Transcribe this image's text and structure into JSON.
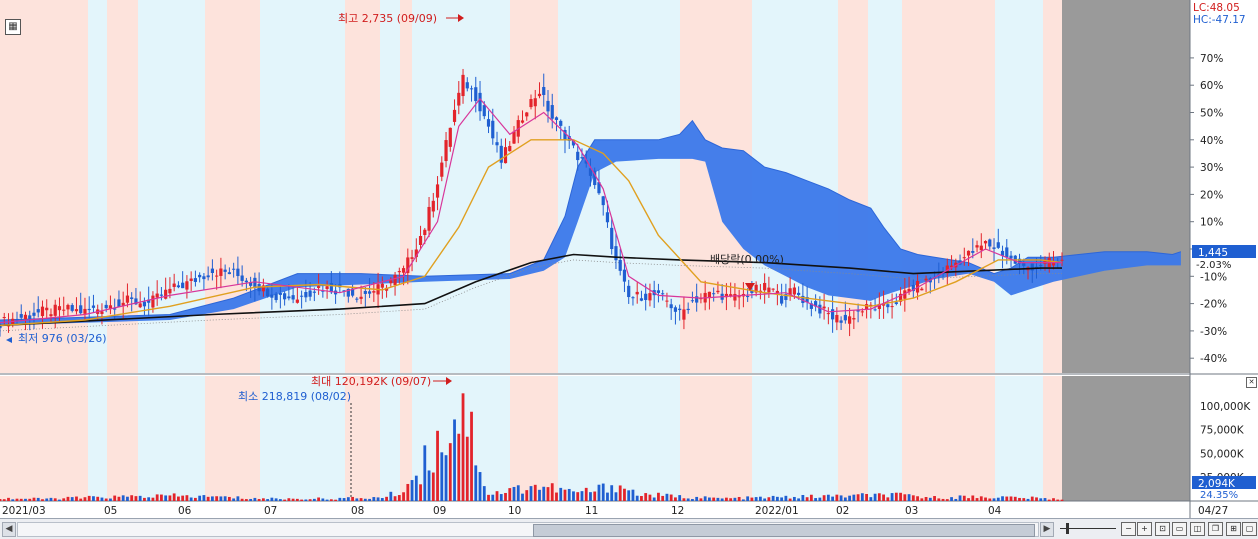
{
  "chart_data": {
    "type": "candlestick",
    "price_axis": {
      "ticks": [
        "70%",
        "60%",
        "50%",
        "40%",
        "30%",
        "20%",
        "10%",
        "0%",
        "-10%",
        "-20%",
        "-30%",
        "-40%"
      ],
      "lc_label": "LC:48.05",
      "hc_label": "HC:-47.17",
      "current_price": "1,445",
      "current_change": "-2.03%"
    },
    "volume_axis": {
      "ticks": [
        "100,000K",
        "75,000K",
        "50,000K",
        "25,000K"
      ],
      "current_volume": "2,094K",
      "current_pct": "24.35%"
    },
    "x_labels": [
      "2021/03",
      "05",
      "06",
      "07",
      "08",
      "09",
      "10",
      "11",
      "12",
      "2022/01",
      "02",
      "03",
      "04",
      "04/27"
    ],
    "annotations": {
      "high_label": "최고 2,735 (09/09)",
      "low_label": "최저 976 (03/26)",
      "dividend_label": "배당락(0.00%)",
      "volume_max_label": "최대 120,192K (09/07)",
      "volume_min_label": "최소 218,819 (08/02)"
    },
    "colors": {
      "up": "#e3242b",
      "down": "#1f5fd1",
      "cloud": "#3b78ea",
      "ma_short": "#d8369a",
      "ma_mid": "#e0a020",
      "ma_long": "#111111",
      "band_pink": "#fde3dc",
      "band_blue": "#e3f5fb",
      "future_area": "#9a9a9a"
    },
    "close_pct_path": [
      [
        0,
        -27
      ],
      [
        5,
        -25
      ],
      [
        10,
        -23
      ],
      [
        15,
        -22
      ],
      [
        20,
        -23
      ],
      [
        25,
        -21
      ],
      [
        30,
        -19
      ],
      [
        35,
        -20
      ],
      [
        40,
        -15
      ],
      [
        45,
        -12
      ],
      [
        50,
        -8
      ],
      [
        55,
        -9
      ],
      [
        60,
        -13
      ],
      [
        65,
        -17
      ],
      [
        70,
        -18
      ],
      [
        75,
        -14
      ],
      [
        80,
        -15
      ],
      [
        85,
        -17
      ],
      [
        90,
        -14
      ],
      [
        95,
        -8
      ],
      [
        100,
        8
      ],
      [
        103,
        25
      ],
      [
        106,
        45
      ],
      [
        109,
        62
      ],
      [
        112,
        56
      ],
      [
        115,
        45
      ],
      [
        118,
        32
      ],
      [
        121,
        42
      ],
      [
        124,
        52
      ],
      [
        127,
        58
      ],
      [
        130,
        48
      ],
      [
        133,
        42
      ],
      [
        136,
        34
      ],
      [
        139,
        28
      ],
      [
        142,
        15
      ],
      [
        145,
        -5
      ],
      [
        148,
        -18
      ],
      [
        151,
        -17
      ],
      [
        154,
        -17
      ],
      [
        157,
        -19
      ],
      [
        160,
        -24
      ],
      [
        163,
        -19
      ],
      [
        166,
        -17
      ],
      [
        169,
        -16
      ],
      [
        172,
        -18
      ],
      [
        175,
        -17
      ],
      [
        178,
        -15
      ],
      [
        181,
        -14
      ],
      [
        184,
        -18
      ],
      [
        187,
        -15
      ],
      [
        190,
        -20
      ],
      [
        193,
        -22
      ],
      [
        196,
        -25
      ],
      [
        199,
        -26
      ],
      [
        202,
        -23
      ],
      [
        205,
        -21
      ],
      [
        208,
        -22
      ],
      [
        211,
        -19
      ],
      [
        214,
        -15
      ],
      [
        217,
        -13
      ],
      [
        220,
        -11
      ],
      [
        223,
        -7
      ],
      [
        226,
        -4
      ],
      [
        229,
        -1
      ],
      [
        232,
        2
      ],
      [
        235,
        0
      ],
      [
        238,
        -4
      ],
      [
        241,
        -7
      ],
      [
        244,
        -6
      ],
      [
        247,
        -5
      ],
      [
        250,
        -5
      ]
    ],
    "ma_short_pct": [
      [
        0,
        -27
      ],
      [
        20,
        -24
      ],
      [
        40,
        -17
      ],
      [
        60,
        -12
      ],
      [
        80,
        -16
      ],
      [
        95,
        -10
      ],
      [
        103,
        10
      ],
      [
        108,
        45
      ],
      [
        113,
        55
      ],
      [
        120,
        42
      ],
      [
        128,
        50
      ],
      [
        136,
        38
      ],
      [
        142,
        22
      ],
      [
        148,
        -10
      ],
      [
        155,
        -17
      ],
      [
        165,
        -18
      ],
      [
        175,
        -17
      ],
      [
        185,
        -16
      ],
      [
        195,
        -23
      ],
      [
        205,
        -22
      ],
      [
        215,
        -15
      ],
      [
        225,
        -6
      ],
      [
        232,
        0
      ],
      [
        240,
        -5
      ],
      [
        250,
        -5
      ]
    ],
    "ma_mid_pct": [
      [
        0,
        -28
      ],
      [
        20,
        -26
      ],
      [
        40,
        -21
      ],
      [
        60,
        -14
      ],
      [
        75,
        -13
      ],
      [
        90,
        -15
      ],
      [
        100,
        -10
      ],
      [
        108,
        8
      ],
      [
        115,
        30
      ],
      [
        125,
        40
      ],
      [
        135,
        40
      ],
      [
        142,
        35
      ],
      [
        148,
        25
      ],
      [
        155,
        5
      ],
      [
        165,
        -12
      ],
      [
        180,
        -16
      ],
      [
        195,
        -19
      ],
      [
        205,
        -21
      ],
      [
        215,
        -18
      ],
      [
        225,
        -12
      ],
      [
        235,
        -4
      ],
      [
        245,
        -4
      ],
      [
        250,
        -5
      ]
    ],
    "ma_long_pct": [
      [
        0,
        -28
      ],
      [
        50,
        -24
      ],
      [
        80,
        -22
      ],
      [
        100,
        -20
      ],
      [
        112,
        -12
      ],
      [
        125,
        -5
      ],
      [
        135,
        -2
      ],
      [
        145,
        -3
      ],
      [
        160,
        -4
      ],
      [
        180,
        -5
      ],
      [
        200,
        -7
      ],
      [
        215,
        -9
      ],
      [
        230,
        -8
      ],
      [
        245,
        -7
      ],
      [
        250,
        -7
      ]
    ],
    "cloud_top_pct": [
      [
        0,
        -26
      ],
      [
        40,
        -24
      ],
      [
        55,
        -18
      ],
      [
        70,
        -9
      ],
      [
        85,
        -9
      ],
      [
        100,
        -10
      ],
      [
        120,
        -9
      ],
      [
        128,
        -4
      ],
      [
        133,
        12
      ],
      [
        136,
        30
      ],
      [
        140,
        40
      ],
      [
        145,
        40
      ],
      [
        155,
        40
      ],
      [
        160,
        42
      ],
      [
        163,
        47
      ],
      [
        166,
        40
      ],
      [
        170,
        37
      ],
      [
        175,
        36
      ],
      [
        180,
        30
      ],
      [
        185,
        28
      ],
      [
        190,
        25
      ],
      [
        195,
        22
      ],
      [
        200,
        18
      ],
      [
        205,
        15
      ],
      [
        208,
        8
      ],
      [
        212,
        0
      ],
      [
        216,
        -2
      ],
      [
        220,
        -3
      ],
      [
        228,
        -5
      ],
      [
        234,
        -9
      ],
      [
        238,
        -7
      ],
      [
        242,
        -3
      ],
      [
        248,
        -3
      ],
      [
        260,
        -1
      ],
      [
        270,
        -1
      ],
      [
        276,
        -2
      ],
      [
        278,
        -1
      ]
    ],
    "cloud_bottom_pct": [
      [
        0,
        -28
      ],
      [
        40,
        -26
      ],
      [
        55,
        -22
      ],
      [
        70,
        -14
      ],
      [
        85,
        -13
      ],
      [
        100,
        -12
      ],
      [
        120,
        -11
      ],
      [
        128,
        -8
      ],
      [
        133,
        -3
      ],
      [
        136,
        10
      ],
      [
        140,
        28
      ],
      [
        145,
        32
      ],
      [
        155,
        33
      ],
      [
        160,
        33
      ],
      [
        163,
        33
      ],
      [
        166,
        32
      ],
      [
        170,
        10
      ],
      [
        175,
        0
      ],
      [
        180,
        -6
      ],
      [
        185,
        -10
      ],
      [
        190,
        -14
      ],
      [
        195,
        -17
      ],
      [
        200,
        -18
      ],
      [
        205,
        -19
      ],
      [
        208,
        -17
      ],
      [
        212,
        -15
      ],
      [
        216,
        -13
      ],
      [
        220,
        -11
      ],
      [
        228,
        -9
      ],
      [
        234,
        -12
      ],
      [
        238,
        -17
      ],
      [
        242,
        -15
      ],
      [
        248,
        -12
      ],
      [
        260,
        -8
      ],
      [
        270,
        -6
      ],
      [
        276,
        -6
      ],
      [
        278,
        -6
      ]
    ],
    "volume_path_k": [
      [
        0,
        3000
      ],
      [
        10,
        2500
      ],
      [
        20,
        4000
      ],
      [
        30,
        5000
      ],
      [
        40,
        6000
      ],
      [
        50,
        5000
      ],
      [
        60,
        3000
      ],
      [
        70,
        2500
      ],
      [
        80,
        3000
      ],
      [
        90,
        4000
      ],
      [
        95,
        12000
      ],
      [
        100,
        45000
      ],
      [
        103,
        65000
      ],
      [
        106,
        90000
      ],
      [
        109,
        120192
      ],
      [
        112,
        60000
      ],
      [
        115,
        8000
      ],
      [
        120,
        12000
      ],
      [
        125,
        18000
      ],
      [
        130,
        15000
      ],
      [
        135,
        10000
      ],
      [
        140,
        12000
      ],
      [
        145,
        20000
      ],
      [
        150,
        8000
      ],
      [
        160,
        5000
      ],
      [
        170,
        3000
      ],
      [
        180,
        4000
      ],
      [
        190,
        5000
      ],
      [
        200,
        6000
      ],
      [
        210,
        7000
      ],
      [
        220,
        4000
      ],
      [
        230,
        5000
      ],
      [
        240,
        4000
      ],
      [
        250,
        2094
      ]
    ]
  }
}
